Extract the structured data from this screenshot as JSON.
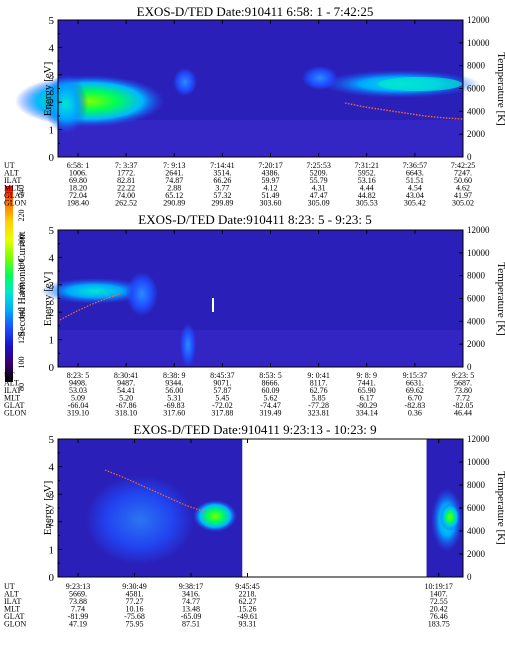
{
  "colors": {
    "background_color": "#2a1fb8",
    "text": "#000000"
  },
  "colorbar": {
    "label": "Second Harmonic Current",
    "ticks": [
      "80",
      "100",
      "120",
      "140",
      "160",
      "180",
      "200",
      "220",
      "240"
    ],
    "colors": [
      "#000000",
      "#3a006a",
      "#1a10c8",
      "#1f4cff",
      "#00a8ff",
      "#00e8d0",
      "#00ff55",
      "#7fff00",
      "#e8ff00",
      "#ffd000",
      "#ff7a00",
      "#ff0000"
    ]
  },
  "row_labels": [
    "UT",
    "ALT",
    "ILAT",
    "MLT",
    "GLAT",
    "GLON"
  ],
  "chart_data": [
    {
      "type": "heatmap",
      "title": "EXOS-D/TED   Date:910411  6:58: 1 - 7:42:25",
      "ylabel": "Energy [eV]",
      "ylabel_right": "Temperature [K]",
      "ylim": [
        0,
        5
      ],
      "y_ticks": [
        "0",
        "1",
        "2",
        "3",
        "4",
        "5"
      ],
      "ylim_right": [
        0,
        12000
      ],
      "y_ticks_right": [
        "0",
        "2000",
        "4000",
        "6000",
        "8000",
        "10000",
        "12000"
      ],
      "table": [
        [
          "6:58: 1",
          "7: 3:37",
          "7: 9:13",
          "7:14:41",
          "7:20:17",
          "7:25:53",
          "7:31:21",
          "7:36:57",
          "7:42:25"
        ],
        [
          "1006.",
          "1772.",
          "2641.",
          "3514.",
          "4386.",
          "5209.",
          "5952.",
          "6643.",
          "7247."
        ],
        [
          "69.80",
          "82.81",
          "74.87",
          "66.26",
          "59.97",
          "55.79",
          "53.16",
          "51.51",
          "50.60"
        ],
        [
          "18.20",
          "22.22",
          "2.88",
          "3.77",
          "4.12",
          "4.31",
          "4.44",
          "4.54",
          "4.62"
        ],
        [
          "72.04",
          "74.00",
          "65.12",
          "57.32",
          "51.49",
          "47.47",
          "44.82",
          "43.04",
          "41.97"
        ],
        [
          "198.40",
          "262.52",
          "290.89",
          "299.89",
          "303.60",
          "305.09",
          "305.53",
          "305.42",
          "305.02"
        ]
      ],
      "blank_fraction": null
    },
    {
      "type": "heatmap",
      "title": "EXOS-D/TED   Date:910411  8:23: 5 - 9:23: 5",
      "ylabel": "Energy [eV]",
      "ylabel_right": "Temperature [K]",
      "ylim": [
        0,
        5
      ],
      "y_ticks": [
        "0",
        "1",
        "2",
        "3",
        "4",
        "5"
      ],
      "ylim_right": [
        0,
        12000
      ],
      "y_ticks_right": [
        "0",
        "2000",
        "4000",
        "6000",
        "8000",
        "10000",
        "12000"
      ],
      "table": [
        [
          "8:23: 5",
          "8:30:41",
          "8:38: 9",
          "8:45:37",
          "8:53: 5",
          "9: 0:41",
          "9: 8: 9",
          "9:15:37",
          "9:23: 5"
        ],
        [
          "9498.",
          "9487.",
          "9344.",
          "9071.",
          "8666.",
          "8117.",
          "7441.",
          "6631.",
          "5687."
        ],
        [
          "53.03",
          "54.41",
          "56.00",
          "57.87",
          "60.09",
          "62.76",
          "65.90",
          "69.62",
          "73.80"
        ],
        [
          "5.09",
          "5.20",
          "5.31",
          "5.45",
          "5.62",
          "5.85",
          "6.17",
          "6.70",
          "7.72"
        ],
        [
          "-66.04",
          "-67.86",
          "-69.83",
          "-72.02",
          "-74.47",
          "-77.28",
          "-80.29",
          "-82.83",
          "-82.05"
        ],
        [
          "319.10",
          "318.10",
          "317.60",
          "317.88",
          "319.49",
          "323.81",
          "334.14",
          "0.36",
          "46.44"
        ]
      ],
      "blank_fraction": null
    },
    {
      "type": "heatmap",
      "title": "EXOS-D/TED   Date:910411  9:23:13 - 10:23: 9",
      "ylabel": "Energy [eV]",
      "ylabel_right": "Temperature [K]",
      "ylim": [
        0,
        5
      ],
      "y_ticks": [
        "0",
        "1",
        "2",
        "3",
        "4",
        "5"
      ],
      "ylim_right": [
        0,
        12000
      ],
      "y_ticks_right": [
        "0",
        "2000",
        "4000",
        "6000",
        "8000",
        "10000",
        "12000"
      ],
      "table": [
        [
          "9:23:13",
          "9:30:49",
          "9:38:17",
          "9:45:45",
          "10:19:17"
        ],
        [
          "5669.",
          "4581.",
          "3416.",
          "2218.",
          "1407."
        ],
        [
          "73.88",
          "77.27",
          "74.77",
          "62.27",
          "72.55"
        ],
        [
          "7.74",
          "10.16",
          "13.48",
          "15.26",
          "20.42"
        ],
        [
          "-81.99",
          "-75.68",
          "-65.09",
          "-49.61",
          "76.46"
        ],
        [
          "47.19",
          "75.95",
          "87.51",
          "93.31",
          "183.75"
        ]
      ],
      "blank_fraction": [
        0.455,
        0.91
      ]
    }
  ]
}
